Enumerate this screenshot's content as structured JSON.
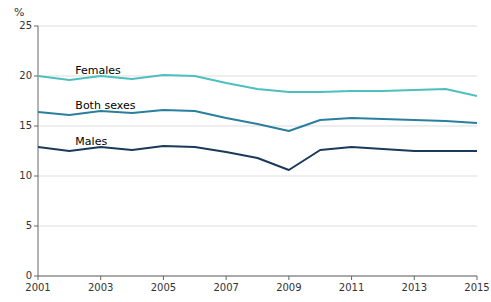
{
  "chart_data": {
    "type": "line",
    "y_label": "%",
    "x": [
      2001,
      2002,
      2003,
      2004,
      2005,
      2006,
      2007,
      2008,
      2009,
      2010,
      2011,
      2012,
      2013,
      2014,
      2015
    ],
    "series": [
      {
        "name": "Females",
        "color": "#4dbfbf",
        "values": [
          20.0,
          19.6,
          20.0,
          19.7,
          20.1,
          20.0,
          19.3,
          18.7,
          18.4,
          18.4,
          18.5,
          18.5,
          18.6,
          18.7,
          18.0
        ]
      },
      {
        "name": "Both sexes",
        "color": "#2a7f9e",
        "values": [
          16.4,
          16.1,
          16.5,
          16.3,
          16.6,
          16.5,
          15.8,
          15.2,
          14.5,
          15.6,
          15.8,
          15.7,
          15.6,
          15.5,
          15.3
        ]
      },
      {
        "name": "Males",
        "color": "#1a3a5c",
        "values": [
          12.9,
          12.5,
          12.9,
          12.6,
          13.0,
          12.9,
          12.4,
          11.8,
          10.6,
          12.6,
          12.9,
          12.7,
          12.5,
          12.5,
          12.5
        ]
      }
    ],
    "xlim": [
      2001,
      2015
    ],
    "xticks": [
      2001,
      2003,
      2005,
      2007,
      2009,
      2011,
      2013,
      2015
    ],
    "ylim": [
      0,
      25
    ],
    "yticks": [
      0,
      5,
      10,
      15,
      20,
      25
    ],
    "grid": true
  }
}
